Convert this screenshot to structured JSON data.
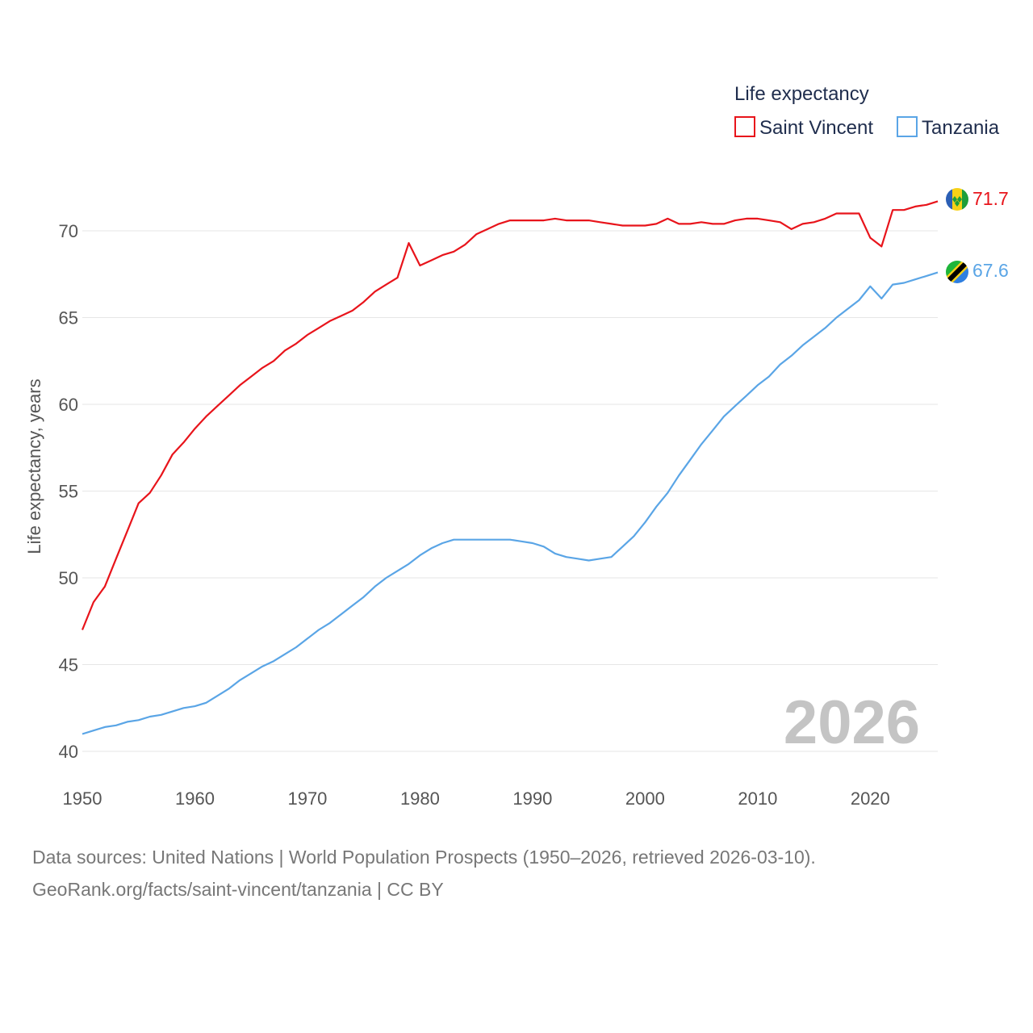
{
  "colors": {
    "saint_vincent": "#e8141b",
    "tanzania": "#5aa5e6",
    "grid": "#e6e6e6"
  },
  "legend": {
    "title": "Life expectancy",
    "items": [
      "Saint Vincent",
      "Tanzania"
    ]
  },
  "year_watermark": "2026",
  "end_labels": {
    "saint_vincent": "71.7",
    "tanzania": "67.6"
  },
  "source": {
    "line1": "Data sources: United Nations | World Population Prospects (1950–2026, retrieved 2026-03-10).",
    "line2": "GeoRank.org/facts/saint-vincent/tanzania | CC BY"
  },
  "chart_data": {
    "type": "line",
    "title": "Life expectancy",
    "xlabel": "",
    "ylabel": "Life expectancy, years",
    "xlim": [
      1950,
      2026
    ],
    "ylim": [
      40,
      72
    ],
    "xticks": [
      1950,
      1960,
      1970,
      1980,
      1990,
      2000,
      2010,
      2020
    ],
    "yticks": [
      40,
      45,
      50,
      55,
      60,
      65,
      70
    ],
    "grid": true,
    "legend_position": "top-right",
    "x": [
      1950,
      1951,
      1952,
      1953,
      1954,
      1955,
      1956,
      1957,
      1958,
      1959,
      1960,
      1961,
      1962,
      1963,
      1964,
      1965,
      1966,
      1967,
      1968,
      1969,
      1970,
      1971,
      1972,
      1973,
      1974,
      1975,
      1976,
      1977,
      1978,
      1979,
      1980,
      1981,
      1982,
      1983,
      1984,
      1985,
      1986,
      1987,
      1988,
      1989,
      1990,
      1991,
      1992,
      1993,
      1994,
      1995,
      1996,
      1997,
      1998,
      1999,
      2000,
      2001,
      2002,
      2003,
      2004,
      2005,
      2006,
      2007,
      2008,
      2009,
      2010,
      2011,
      2012,
      2013,
      2014,
      2015,
      2016,
      2017,
      2018,
      2019,
      2020,
      2021,
      2022,
      2023,
      2024,
      2025,
      2026
    ],
    "series": [
      {
        "name": "Saint Vincent",
        "values": [
          47.0,
          48.6,
          49.5,
          51.1,
          52.7,
          54.3,
          54.9,
          55.9,
          57.1,
          57.8,
          58.6,
          59.3,
          59.9,
          60.5,
          61.1,
          61.6,
          62.1,
          62.5,
          63.1,
          63.5,
          64.0,
          64.4,
          64.8,
          65.1,
          65.4,
          65.9,
          66.5,
          66.9,
          67.3,
          69.3,
          68.0,
          68.3,
          68.6,
          68.8,
          69.2,
          69.8,
          70.1,
          70.4,
          70.6,
          70.6,
          70.6,
          70.6,
          70.7,
          70.6,
          70.6,
          70.6,
          70.5,
          70.4,
          70.3,
          70.3,
          70.3,
          70.4,
          70.7,
          70.4,
          70.4,
          70.5,
          70.4,
          70.4,
          70.6,
          70.7,
          70.7,
          70.6,
          70.5,
          70.1,
          70.4,
          70.5,
          70.7,
          71.0,
          71.0,
          71.0,
          69.6,
          69.1,
          71.2,
          71.2,
          71.4,
          71.5,
          71.7
        ]
      },
      {
        "name": "Tanzania",
        "values": [
          41.0,
          41.2,
          41.4,
          41.5,
          41.7,
          41.8,
          42.0,
          42.1,
          42.3,
          42.5,
          42.6,
          42.8,
          43.2,
          43.6,
          44.1,
          44.5,
          44.9,
          45.2,
          45.6,
          46.0,
          46.5,
          47.0,
          47.4,
          47.9,
          48.4,
          48.9,
          49.5,
          50.0,
          50.4,
          50.8,
          51.3,
          51.7,
          52.0,
          52.2,
          52.2,
          52.2,
          52.2,
          52.2,
          52.2,
          52.1,
          52.0,
          51.8,
          51.4,
          51.2,
          51.1,
          51.0,
          51.1,
          51.2,
          51.8,
          52.4,
          53.2,
          54.1,
          54.9,
          55.9,
          56.8,
          57.7,
          58.5,
          59.3,
          59.9,
          60.5,
          61.1,
          61.6,
          62.3,
          62.8,
          63.4,
          63.9,
          64.4,
          65.0,
          65.5,
          66.0,
          66.8,
          66.1,
          66.9,
          67.0,
          67.2,
          67.4,
          67.6
        ]
      }
    ]
  }
}
